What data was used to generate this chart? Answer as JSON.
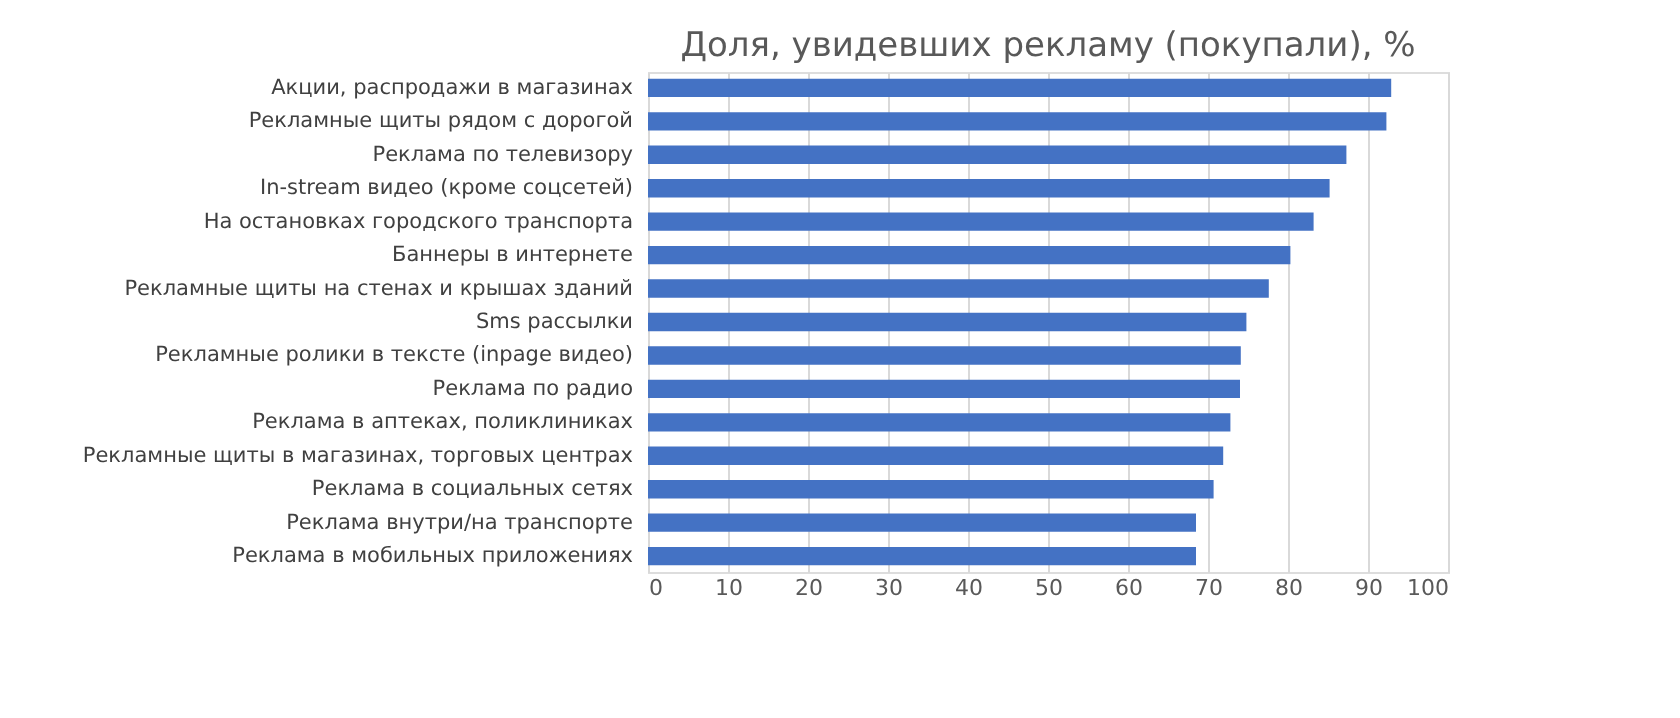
{
  "chart_data": {
    "type": "bar",
    "orientation": "horizontal",
    "title": "Доля, увидевших рекламу (покупали), %",
    "categories": [
      "Акции, распродажи в магазинах",
      "Рекламные щиты рядом с дорогой",
      "Реклама по телевизору",
      "In-stream видео (кроме соцсетей)",
      "На остановках городского транспорта",
      "Баннеры в интернете",
      "Рекламные щиты на стенах и крышах зданий",
      "Sms рассылки",
      "Рекламные ролики в тексте (inpage видео)",
      "Реклама по радио",
      "Реклама в аптеках, поликлиниках",
      "Рекламные щиты в магазинах, торговых центрах",
      "Реклама в социальных сетях",
      "Реклама внутри/на транспорте",
      "Реклама в мобильных приложениях"
    ],
    "values": [
      92.9,
      92.3,
      87.3,
      85.2,
      83.2,
      80.3,
      77.6,
      74.8,
      74.1,
      74.0,
      72.8,
      71.9,
      70.7,
      68.5,
      68.5
    ],
    "color": "#4472c4",
    "xlim": [
      0,
      100
    ],
    "xticks": [
      0,
      10,
      20,
      30,
      40,
      50,
      60,
      70,
      80,
      90,
      100
    ],
    "grid": "x"
  }
}
